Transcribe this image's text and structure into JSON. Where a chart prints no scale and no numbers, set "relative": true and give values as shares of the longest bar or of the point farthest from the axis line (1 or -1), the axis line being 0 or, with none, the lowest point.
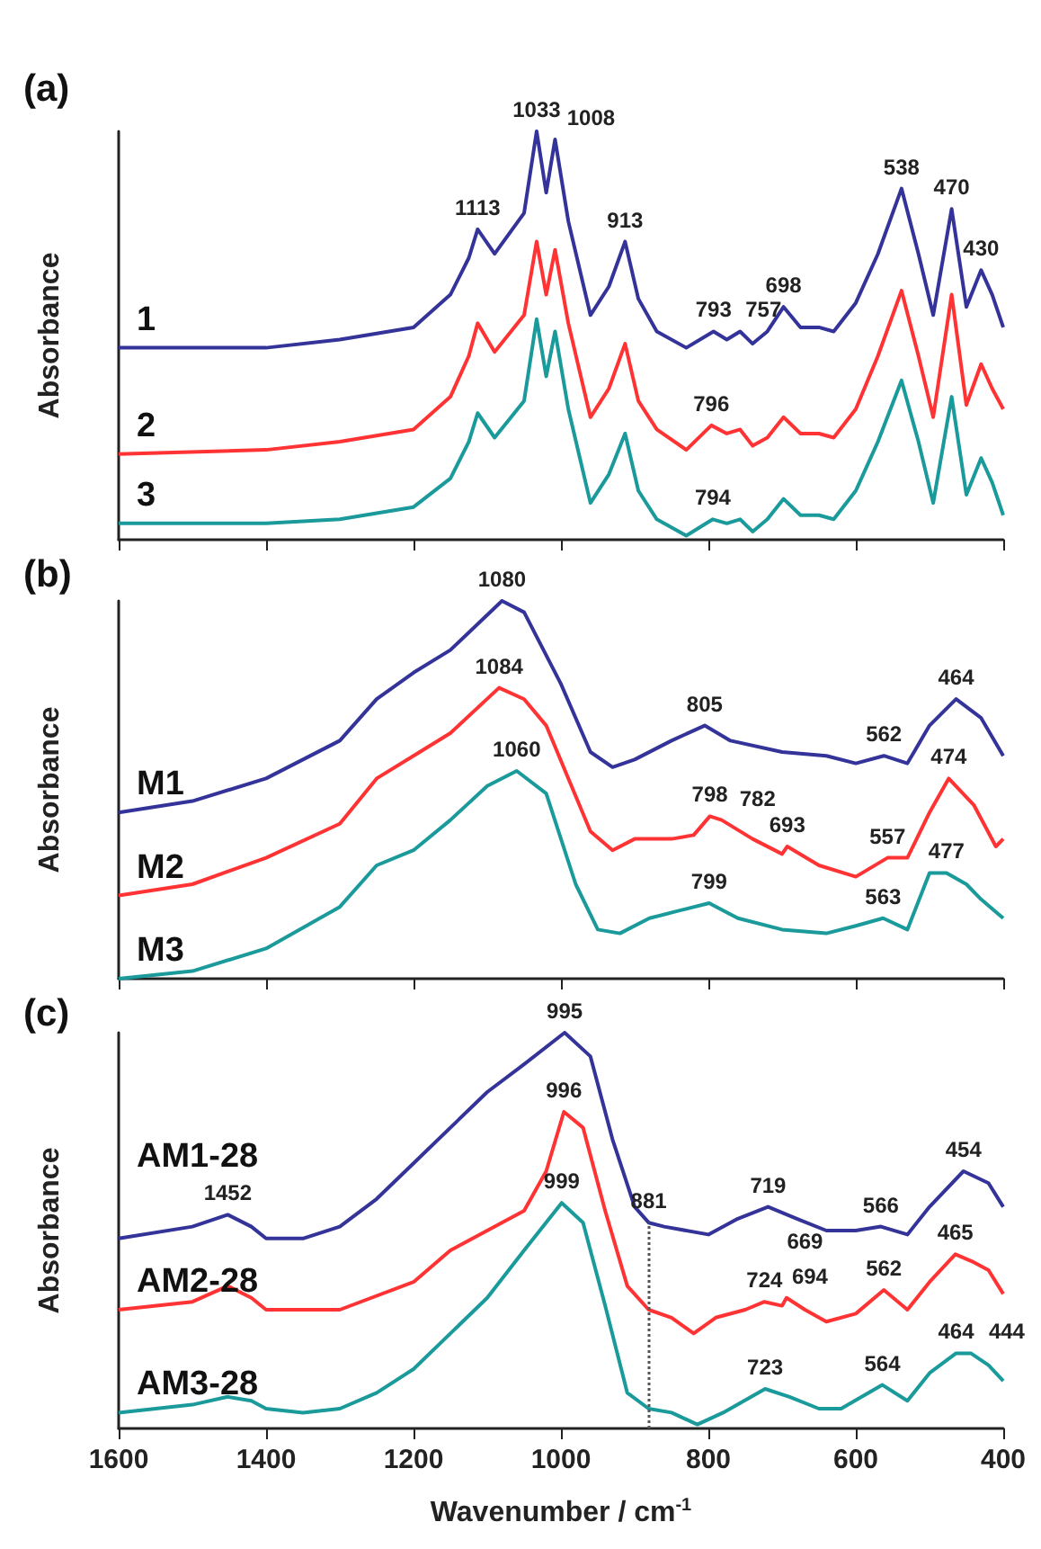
{
  "chart_data": [
    {
      "type": "line",
      "title": "(a)",
      "ylabel": "Absorbance",
      "relative": true,
      "xlim": [
        1600,
        400
      ],
      "xticks": [
        1600,
        1400,
        1200,
        1000,
        800,
        600,
        400
      ],
      "tick_labels": false,
      "series": [
        {
          "name": "1",
          "color": "#333399",
          "x": [
            1600,
            1400,
            1300,
            1200,
            1150,
            1125,
            1113,
            1090,
            1050,
            1033,
            1020,
            1008,
            990,
            960,
            935,
            913,
            895,
            870,
            830,
            793,
            775,
            757,
            740,
            720,
            698,
            675,
            650,
            630,
            600,
            570,
            538,
            515,
            495,
            470,
            450,
            430,
            415,
            400
          ],
          "values": [
            0.47,
            0.47,
            0.49,
            0.52,
            0.6,
            0.69,
            0.76,
            0.7,
            0.8,
            1.0,
            0.85,
            0.98,
            0.78,
            0.55,
            0.62,
            0.73,
            0.59,
            0.51,
            0.47,
            0.51,
            0.49,
            0.51,
            0.48,
            0.51,
            0.57,
            0.52,
            0.52,
            0.51,
            0.58,
            0.7,
            0.86,
            0.7,
            0.55,
            0.81,
            0.57,
            0.66,
            0.6,
            0.52
          ]
        },
        {
          "name": "2",
          "color": "#ff3333",
          "x": [
            1600,
            1400,
            1300,
            1200,
            1150,
            1125,
            1113,
            1090,
            1050,
            1033,
            1020,
            1008,
            990,
            960,
            935,
            913,
            895,
            870,
            830,
            796,
            775,
            757,
            740,
            720,
            698,
            675,
            650,
            630,
            600,
            570,
            538,
            515,
            495,
            470,
            450,
            430,
            415,
            400
          ],
          "values": [
            0.21,
            0.22,
            0.24,
            0.27,
            0.35,
            0.45,
            0.53,
            0.46,
            0.55,
            0.73,
            0.6,
            0.71,
            0.53,
            0.3,
            0.37,
            0.48,
            0.34,
            0.27,
            0.22,
            0.28,
            0.26,
            0.27,
            0.23,
            0.25,
            0.3,
            0.26,
            0.26,
            0.25,
            0.32,
            0.45,
            0.61,
            0.45,
            0.3,
            0.6,
            0.33,
            0.43,
            0.37,
            0.32
          ]
        },
        {
          "name": "3",
          "color": "#1a9a9a",
          "x": [
            1600,
            1400,
            1300,
            1200,
            1150,
            1125,
            1113,
            1090,
            1050,
            1033,
            1020,
            1008,
            990,
            960,
            935,
            913,
            895,
            870,
            830,
            794,
            775,
            757,
            740,
            720,
            698,
            675,
            650,
            630,
            600,
            570,
            538,
            515,
            495,
            470,
            450,
            430,
            415,
            400
          ],
          "values": [
            0.04,
            0.04,
            0.05,
            0.08,
            0.15,
            0.24,
            0.31,
            0.25,
            0.34,
            0.54,
            0.4,
            0.51,
            0.32,
            0.09,
            0.16,
            0.26,
            0.12,
            0.05,
            0.01,
            0.05,
            0.04,
            0.05,
            0.02,
            0.05,
            0.1,
            0.06,
            0.06,
            0.05,
            0.12,
            0.24,
            0.39,
            0.24,
            0.09,
            0.35,
            0.11,
            0.2,
            0.14,
            0.06
          ]
        }
      ],
      "annotations": [
        {
          "text": "1113",
          "x": 1113,
          "y": 0.76
        },
        {
          "text": "1033",
          "x": 1033,
          "y": 1.0
        },
        {
          "text": "1008",
          "x": 1008,
          "y": 0.98
        },
        {
          "text": "913",
          "x": 913,
          "y": 0.73
        },
        {
          "text": "793",
          "x": 793,
          "y": 0.51
        },
        {
          "text": "757",
          "x": 757,
          "y": 0.51
        },
        {
          "text": "698",
          "x": 698,
          "y": 0.57
        },
        {
          "text": "538",
          "x": 538,
          "y": 0.86
        },
        {
          "text": "470",
          "x": 470,
          "y": 0.81
        },
        {
          "text": "430",
          "x": 430,
          "y": 0.66
        },
        {
          "text": "796",
          "x": 796,
          "y": 0.28
        },
        {
          "text": "794",
          "x": 794,
          "y": 0.05
        }
      ]
    },
    {
      "type": "line",
      "title": "(b)",
      "ylabel": "Absorbance",
      "relative": true,
      "xlim": [
        1600,
        400
      ],
      "xticks": [
        1600,
        1400,
        1200,
        1000,
        800,
        600,
        400
      ],
      "tick_labels": false,
      "series": [
        {
          "name": "M1",
          "color": "#333399",
          "x": [
            1600,
            1500,
            1400,
            1300,
            1250,
            1200,
            1150,
            1080,
            1050,
            1000,
            960,
            930,
            900,
            850,
            805,
            770,
            700,
            640,
            600,
            562,
            530,
            500,
            464,
            430,
            400
          ],
          "values": [
            0.44,
            0.47,
            0.53,
            0.63,
            0.74,
            0.81,
            0.87,
            1.0,
            0.97,
            0.78,
            0.6,
            0.56,
            0.58,
            0.63,
            0.67,
            0.63,
            0.6,
            0.59,
            0.57,
            0.59,
            0.57,
            0.67,
            0.74,
            0.69,
            0.59
          ]
        },
        {
          "name": "M2",
          "color": "#ff3333",
          "x": [
            1600,
            1500,
            1400,
            1300,
            1250,
            1200,
            1150,
            1084,
            1050,
            1020,
            960,
            930,
            900,
            850,
            820,
            798,
            782,
            740,
            700,
            693,
            650,
            600,
            557,
            530,
            500,
            474,
            440,
            410,
            400
          ],
          "values": [
            0.22,
            0.25,
            0.32,
            0.41,
            0.53,
            0.59,
            0.65,
            0.77,
            0.74,
            0.67,
            0.39,
            0.34,
            0.37,
            0.37,
            0.38,
            0.43,
            0.42,
            0.37,
            0.33,
            0.35,
            0.3,
            0.27,
            0.32,
            0.32,
            0.44,
            0.53,
            0.46,
            0.35,
            0.37
          ]
        },
        {
          "name": "M3",
          "color": "#1a9a9a",
          "x": [
            1600,
            1500,
            1400,
            1300,
            1250,
            1200,
            1150,
            1100,
            1060,
            1020,
            980,
            950,
            920,
            880,
            840,
            799,
            760,
            700,
            640,
            600,
            563,
            530,
            500,
            477,
            450,
            430,
            400
          ],
          "values": [
            0.0,
            0.02,
            0.08,
            0.19,
            0.3,
            0.34,
            0.42,
            0.51,
            0.55,
            0.49,
            0.25,
            0.13,
            0.12,
            0.16,
            0.18,
            0.2,
            0.16,
            0.13,
            0.12,
            0.14,
            0.16,
            0.13,
            0.28,
            0.28,
            0.25,
            0.21,
            0.16
          ]
        }
      ],
      "annotations": [
        {
          "text": "1080",
          "x": 1080,
          "y": 1.0
        },
        {
          "text": "805",
          "x": 805,
          "y": 0.67
        },
        {
          "text": "562",
          "x": 562,
          "y": 0.59
        },
        {
          "text": "464",
          "x": 464,
          "y": 0.74
        },
        {
          "text": "1084",
          "x": 1084,
          "y": 0.77
        },
        {
          "text": "798",
          "x": 798,
          "y": 0.43
        },
        {
          "text": "782",
          "x": 782,
          "y": 0.42
        },
        {
          "text": "693",
          "x": 693,
          "y": 0.35
        },
        {
          "text": "557",
          "x": 557,
          "y": 0.32
        },
        {
          "text": "474",
          "x": 474,
          "y": 0.53
        },
        {
          "text": "1060",
          "x": 1060,
          "y": 0.55
        },
        {
          "text": "799",
          "x": 799,
          "y": 0.2
        },
        {
          "text": "563",
          "x": 563,
          "y": 0.16
        },
        {
          "text": "477",
          "x": 477,
          "y": 0.28
        }
      ]
    },
    {
      "type": "line",
      "title": "(c)",
      "xlabel": "Wavenumber / cm$^{-1}$",
      "ylabel": "Absorbance",
      "relative": true,
      "xlim": [
        1600,
        400
      ],
      "xticks": [
        1600,
        1400,
        1200,
        1000,
        800,
        600,
        400
      ],
      "tick_labels": "x",
      "series": [
        {
          "name": "AM1-28",
          "color": "#333399",
          "x": [
            1600,
            1500,
            1452,
            1420,
            1400,
            1350,
            1300,
            1250,
            1200,
            1150,
            1100,
            1050,
            995,
            960,
            930,
            900,
            881,
            860,
            800,
            760,
            719,
            680,
            640,
            600,
            566,
            530,
            500,
            454,
            420,
            400
          ],
          "values": [
            0.48,
            0.51,
            0.54,
            0.51,
            0.48,
            0.48,
            0.51,
            0.58,
            0.67,
            0.76,
            0.85,
            0.92,
            1.0,
            0.94,
            0.73,
            0.56,
            0.52,
            0.51,
            0.49,
            0.53,
            0.56,
            0.53,
            0.5,
            0.5,
            0.51,
            0.49,
            0.56,
            0.65,
            0.62,
            0.56
          ]
        },
        {
          "name": "AM2-28",
          "color": "#ff3333",
          "x": [
            1600,
            1500,
            1452,
            1420,
            1400,
            1300,
            1200,
            1150,
            1100,
            1050,
            1020,
            996,
            970,
            940,
            910,
            881,
            850,
            820,
            790,
            750,
            724,
            700,
            694,
            669,
            640,
            600,
            562,
            530,
            500,
            465,
            440,
            420,
            400
          ],
          "values": [
            0.3,
            0.32,
            0.36,
            0.33,
            0.3,
            0.3,
            0.37,
            0.45,
            0.5,
            0.55,
            0.65,
            0.8,
            0.76,
            0.55,
            0.36,
            0.3,
            0.28,
            0.24,
            0.28,
            0.3,
            0.32,
            0.31,
            0.33,
            0.3,
            0.27,
            0.29,
            0.35,
            0.3,
            0.37,
            0.44,
            0.42,
            0.4,
            0.34
          ]
        },
        {
          "name": "AM3-28",
          "color": "#1a9a9a",
          "x": [
            1600,
            1500,
            1452,
            1420,
            1400,
            1350,
            1300,
            1250,
            1200,
            1150,
            1100,
            1050,
            999,
            970,
            940,
            910,
            881,
            850,
            815,
            780,
            723,
            690,
            650,
            620,
            564,
            530,
            500,
            464,
            444,
            420,
            400
          ],
          "values": [
            0.04,
            0.06,
            0.08,
            0.07,
            0.05,
            0.04,
            0.05,
            0.09,
            0.15,
            0.24,
            0.33,
            0.45,
            0.57,
            0.52,
            0.31,
            0.09,
            0.05,
            0.04,
            0.01,
            0.04,
            0.1,
            0.08,
            0.05,
            0.05,
            0.11,
            0.07,
            0.14,
            0.19,
            0.19,
            0.16,
            0.12
          ]
        }
      ],
      "ref_lines": [
        {
          "axis": "x",
          "value": 881,
          "color": "#555555",
          "line_style": "dotted"
        }
      ],
      "annotations": [
        {
          "text": "995",
          "x": 995,
          "y": 1.0
        },
        {
          "text": "1452",
          "x": 1452,
          "y": 0.54
        },
        {
          "text": "881",
          "x": 881,
          "y": 0.52
        },
        {
          "text": "719",
          "x": 719,
          "y": 0.56
        },
        {
          "text": "566",
          "x": 566,
          "y": 0.51
        },
        {
          "text": "454",
          "x": 454,
          "y": 0.65
        },
        {
          "text": "996",
          "x": 996,
          "y": 0.8
        },
        {
          "text": "724",
          "x": 724,
          "y": 0.32
        },
        {
          "text": "694",
          "x": 694,
          "y": 0.33
        },
        {
          "text": "669",
          "x": 669,
          "y": 0.3
        },
        {
          "text": "562",
          "x": 562,
          "y": 0.35
        },
        {
          "text": "465",
          "x": 465,
          "y": 0.44
        },
        {
          "text": "999",
          "x": 999,
          "y": 0.57
        },
        {
          "text": "723",
          "x": 723,
          "y": 0.1
        },
        {
          "text": "564",
          "x": 564,
          "y": 0.11
        },
        {
          "text": "464",
          "x": 464,
          "y": 0.19
        },
        {
          "text": "444",
          "x": 444,
          "y": 0.19
        }
      ]
    }
  ]
}
